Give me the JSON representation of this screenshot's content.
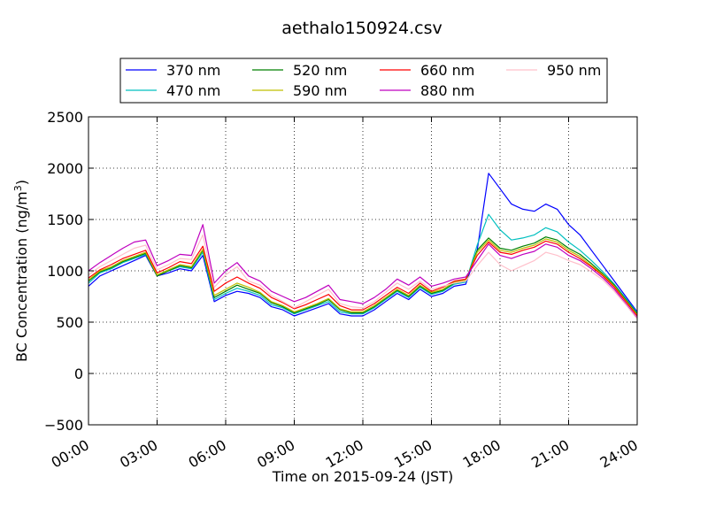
{
  "chart_data": {
    "type": "line",
    "title": "aethalo150924.csv",
    "xlabel": "Time on 2015-09-24 (JST)",
    "ylabel": "BC Concentration (ng/m",
    "ylabel_sup": "3",
    "ylabel_end": ")",
    "xlim": [
      "00:00",
      "24:00"
    ],
    "ylim": [
      -500,
      2500
    ],
    "x_ticks": [
      "00:00",
      "03:00",
      "06:00",
      "09:00",
      "12:00",
      "15:00",
      "18:00",
      "21:00",
      "24:00"
    ],
    "y_ticks": [
      "−500",
      "0",
      "500",
      "1000",
      "1500",
      "2000",
      "2500"
    ],
    "grid": "dotted",
    "legend_position": "top",
    "x": [
      "00:00",
      "00:30",
      "01:00",
      "01:30",
      "02:00",
      "02:30",
      "03:00",
      "03:30",
      "04:00",
      "04:30",
      "05:00",
      "05:30",
      "06:00",
      "06:30",
      "07:00",
      "07:30",
      "08:00",
      "08:30",
      "09:00",
      "09:30",
      "10:00",
      "10:30",
      "11:00",
      "11:30",
      "12:00",
      "12:30",
      "13:00",
      "13:30",
      "14:00",
      "14:30",
      "15:00",
      "15:30",
      "16:00",
      "16:30",
      "17:00",
      "17:30",
      "18:00",
      "18:30",
      "19:00",
      "19:30",
      "20:00",
      "20:30",
      "21:00",
      "21:30",
      "22:00",
      "22:30",
      "23:00",
      "23:30",
      "24:00"
    ],
    "series": [
      {
        "name": "370 nm",
        "color": "#0000ff",
        "values": [
          850,
          950,
          1000,
          1050,
          1100,
          1150,
          950,
          980,
          1020,
          1000,
          1150,
          700,
          760,
          800,
          780,
          740,
          650,
          620,
          560,
          600,
          640,
          680,
          580,
          560,
          560,
          620,
          700,
          780,
          720,
          820,
          750,
          780,
          850,
          870,
          1200,
          1950,
          1800,
          1650,
          1600,
          1580,
          1650,
          1600,
          1450,
          1350,
          1200,
          1050,
          900,
          750,
          600
        ]
      },
      {
        "name": "470 nm",
        "color": "#00bfbf",
        "values": [
          880,
          980,
          1020,
          1080,
          1120,
          1160,
          960,
          1000,
          1040,
          1020,
          1180,
          720,
          780,
          830,
          800,
          760,
          670,
          640,
          580,
          620,
          660,
          700,
          600,
          580,
          580,
          640,
          720,
          800,
          740,
          840,
          770,
          800,
          870,
          890,
          1250,
          1550,
          1400,
          1300,
          1320,
          1350,
          1420,
          1380,
          1280,
          1200,
          1100,
          990,
          870,
          730,
          590
        ]
      },
      {
        "name": "520 nm",
        "color": "#008000",
        "values": [
          900,
          990,
          1030,
          1090,
          1130,
          1170,
          950,
          1000,
          1050,
          1030,
          1200,
          740,
          800,
          860,
          820,
          780,
          690,
          650,
          590,
          630,
          670,
          720,
          620,
          590,
          590,
          650,
          730,
          810,
          750,
          850,
          780,
          810,
          880,
          900,
          1200,
          1320,
          1220,
          1200,
          1240,
          1270,
          1330,
          1300,
          1220,
          1160,
          1070,
          970,
          860,
          720,
          580
        ]
      },
      {
        "name": "590 nm",
        "color": "#bfbf00",
        "values": [
          910,
          1000,
          1040,
          1100,
          1140,
          1180,
          960,
          1010,
          1060,
          1040,
          1210,
          760,
          820,
          880,
          840,
          790,
          700,
          660,
          600,
          640,
          680,
          730,
          630,
          600,
          600,
          660,
          740,
          820,
          760,
          860,
          790,
          820,
          890,
          910,
          1180,
          1300,
          1200,
          1180,
          1220,
          1250,
          1310,
          1280,
          1200,
          1140,
          1050,
          960,
          850,
          710,
          570
        ]
      },
      {
        "name": "660 nm",
        "color": "#ff0000",
        "values": [
          930,
          1010,
          1060,
          1120,
          1160,
          1200,
          980,
          1030,
          1090,
          1070,
          1240,
          800,
          880,
          940,
          880,
          830,
          740,
          690,
          630,
          670,
          720,
          770,
          660,
          620,
          620,
          680,
          760,
          840,
          780,
          880,
          800,
          840,
          900,
          920,
          1150,
          1280,
          1180,
          1160,
          1200,
          1230,
          1290,
          1260,
          1180,
          1120,
          1040,
          950,
          840,
          700,
          560
        ]
      },
      {
        "name": "880 nm",
        "color": "#bf00bf",
        "values": [
          1000,
          1080,
          1150,
          1220,
          1280,
          1300,
          1050,
          1100,
          1160,
          1150,
          1450,
          880,
          1000,
          1080,
          950,
          900,
          800,
          750,
          700,
          740,
          800,
          860,
          720,
          700,
          680,
          740,
          820,
          920,
          860,
          940,
          850,
          880,
          920,
          940,
          1100,
          1260,
          1150,
          1120,
          1160,
          1190,
          1260,
          1230,
          1150,
          1100,
          1020,
          930,
          820,
          680,
          540
        ]
      },
      {
        "name": "950 nm",
        "color": "#ffc0cb",
        "values": [
          960,
          1040,
          1100,
          1160,
          1220,
          1250,
          1010,
          1060,
          1120,
          1110,
          1350,
          840,
          960,
          1040,
          900,
          860,
          760,
          700,
          640,
          700,
          760,
          820,
          680,
          650,
          640,
          700,
          790,
          880,
          820,
          900,
          820,
          850,
          880,
          900,
          1050,
          1180,
          1060,
          1000,
          1050,
          1100,
          1180,
          1150,
          1100,
          1060,
          990,
          910,
          800,
          670,
          530
        ]
      }
    ]
  }
}
